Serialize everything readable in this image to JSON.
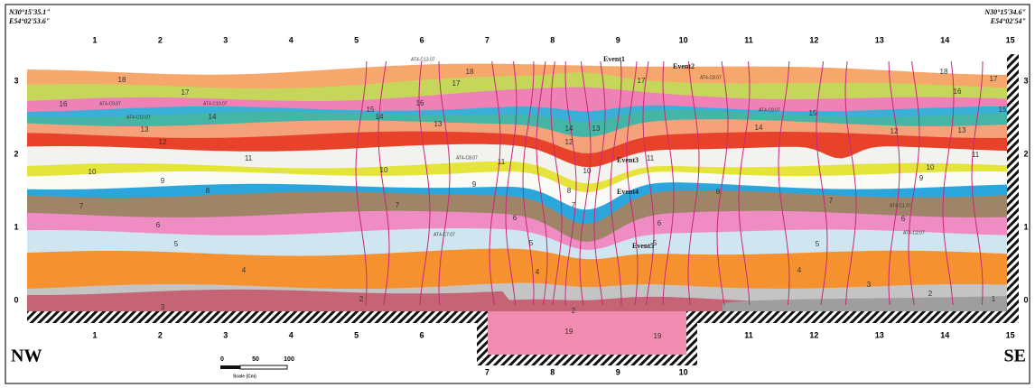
{
  "header": {
    "coord_left": [
      "N30°15'35.1\"",
      "E54°02'53.6\""
    ],
    "coord_right": [
      "N30°15'34.6\"",
      "E54°02'54\""
    ]
  },
  "columns": [
    "1",
    "2",
    "3",
    "4",
    "5",
    "6",
    "7",
    "8",
    "9",
    "10",
    "11",
    "12",
    "13",
    "14",
    "15"
  ],
  "depth_ticks": [
    "0",
    "1",
    "2",
    "3"
  ],
  "directions": {
    "left": "NW",
    "right": "SE"
  },
  "scale": {
    "ticks": [
      "0",
      "50",
      "100"
    ],
    "label": "Scale (Cm)"
  },
  "layers": [
    "1",
    "2",
    "3",
    "4",
    "5",
    "6",
    "7",
    "8",
    "9",
    "10",
    "11",
    "12",
    "13",
    "14",
    "15",
    "16",
    "17",
    "18",
    "19"
  ],
  "events": [
    "Event1",
    "Event2",
    "Event3",
    "Event4",
    "Event5"
  ],
  "samples": [
    "AT4-C9.07",
    "AT4-C10.07",
    "AT4-C8.07",
    "AT4-C7.07",
    "AT4-C2.07",
    "AT4-C1.07",
    "AT4-C13.07"
  ]
}
